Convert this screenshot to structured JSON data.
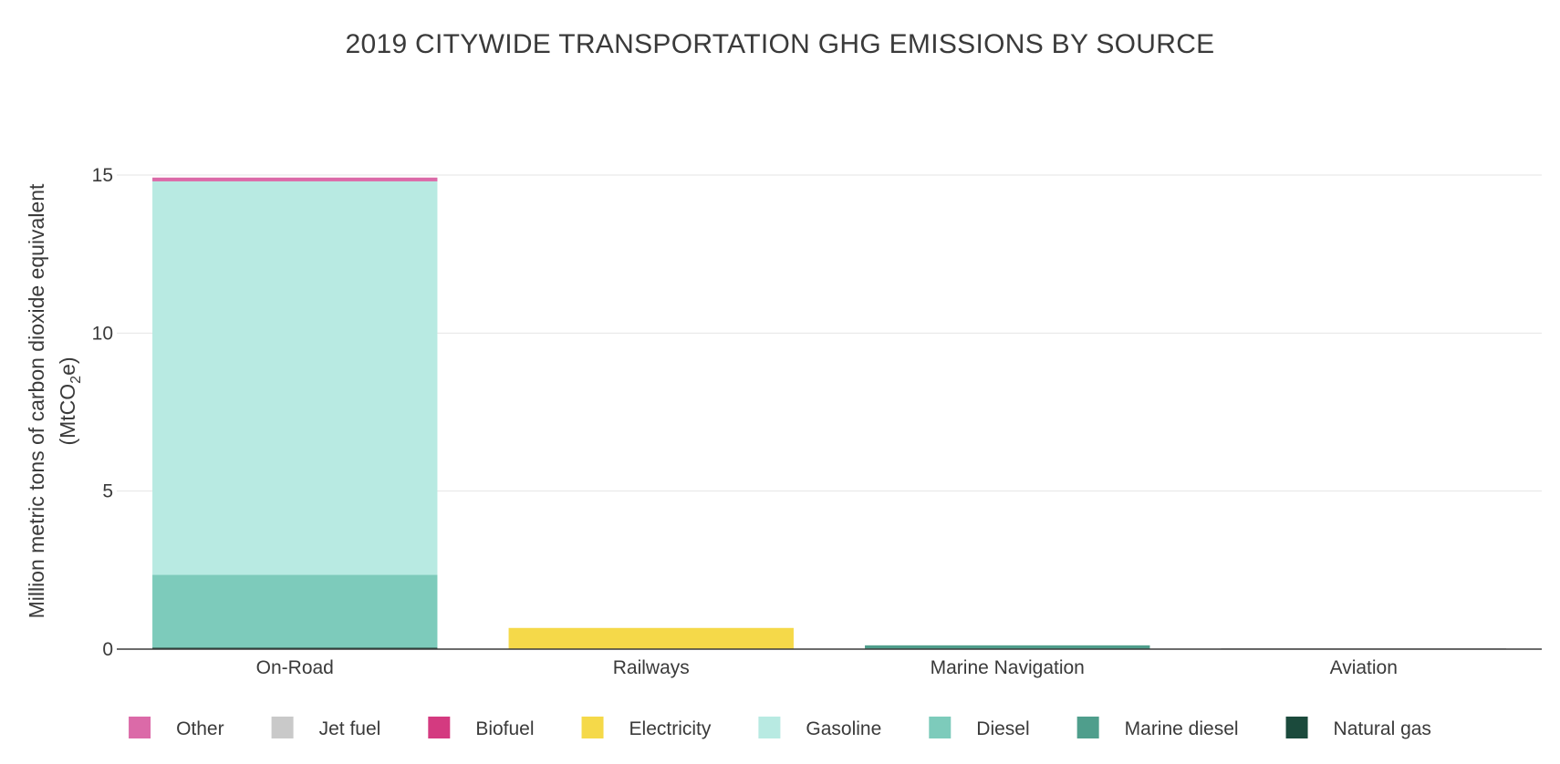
{
  "chart_data": {
    "type": "bar",
    "stacked": true,
    "title": "2019 CITYWIDE TRANSPORTATION GHG EMISSIONS BY SOURCE",
    "xlabel": "",
    "ylabel_line1": "Million metric tons of carbon dioxide equivalent",
    "ylabel_line2_prefix": "(MtCO",
    "ylabel_line2_subscript": "2",
    "ylabel_line2_suffix": "e)",
    "ylim": [
      0,
      15
    ],
    "yticks": [
      0,
      5,
      10,
      15
    ],
    "grid": true,
    "legend_position": "bottom",
    "categories": [
      "On-Road",
      "Railways",
      "Marine Navigation",
      "Aviation"
    ],
    "series": [
      {
        "name": "Natural gas",
        "color": "#1b4a3c",
        "values": [
          0.05,
          0,
          0,
          0
        ]
      },
      {
        "name": "Marine diesel",
        "color": "#4f9e8c",
        "values": [
          0,
          0,
          0.12,
          0
        ]
      },
      {
        "name": "Diesel",
        "color": "#7dcbbb",
        "values": [
          2.3,
          0,
          0,
          0
        ]
      },
      {
        "name": "Gasoline",
        "color": "#b8eae2",
        "values": [
          12.45,
          0,
          0,
          0
        ]
      },
      {
        "name": "Electricity",
        "color": "#f5d949",
        "values": [
          0,
          0.67,
          0,
          0
        ]
      },
      {
        "name": "Biofuel",
        "color": "#d43a80",
        "values": [
          0,
          0,
          0,
          0
        ]
      },
      {
        "name": "Jet fuel",
        "color": "#c9c9c9",
        "values": [
          0,
          0,
          0,
          0.03
        ]
      },
      {
        "name": "Other",
        "color": "#db6aa8",
        "values": [
          0.12,
          0,
          0,
          0
        ]
      }
    ],
    "legend_order": [
      "Other",
      "Jet fuel",
      "Biofuel",
      "Electricity",
      "Gasoline",
      "Diesel",
      "Marine diesel",
      "Natural gas"
    ]
  }
}
